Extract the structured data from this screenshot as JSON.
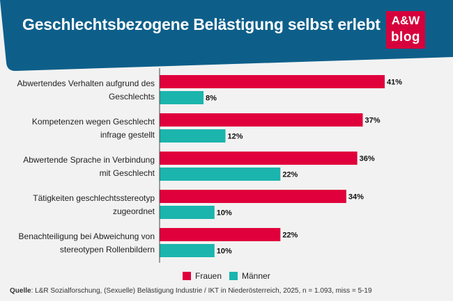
{
  "header": {
    "title": "Geschlechtsbezogene Belästigung selbst erlebt",
    "logo_line1": "A&W",
    "logo_line2": "blog"
  },
  "colors": {
    "banner": "#0d5f8a",
    "frauen": "#e0003c",
    "maenner": "#1bb5ad",
    "logo": "#d6003c"
  },
  "chart_data": {
    "type": "bar",
    "orientation": "horizontal",
    "categories": [
      [
        "Abwertendes Verhalten aufgrund des",
        "Geschlechts"
      ],
      [
        "Kompetenzen wegen Geschlecht",
        "infrage gestellt"
      ],
      [
        "Abwertende Sprache in Verbindung",
        "mit Geschlecht"
      ],
      [
        "Tätigkeiten geschlechtsstereotyp",
        "zugeordnet"
      ],
      [
        "Benachteiligung bei Abweichung von",
        "stereotypen Rollenbildern"
      ]
    ],
    "series": [
      {
        "name": "Frauen",
        "values": [
          41,
          37,
          36,
          34,
          22
        ],
        "labels": [
          "41%",
          "37%",
          "36%",
          "34%",
          "22%"
        ]
      },
      {
        "name": "Männer",
        "values": [
          8,
          12,
          22,
          10,
          10
        ],
        "labels": [
          "8%",
          "12%",
          "22%",
          "10%",
          "10%"
        ]
      }
    ],
    "xlim": [
      0,
      41
    ],
    "legend_position": "bottom",
    "grid": false
  },
  "footer": {
    "source_label": "Quelle",
    "source_text": ": L&R Sozialforschung, (Sexuelle) Belästigung Industrie / IKT in Niederösterreich, 2025, n = 1.093, miss = 5-19"
  }
}
